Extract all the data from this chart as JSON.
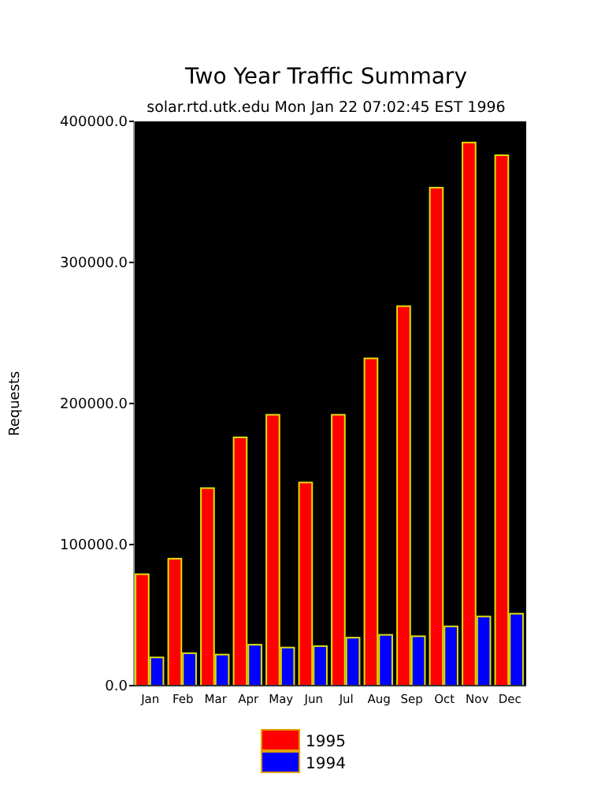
{
  "chart_data": {
    "type": "bar",
    "title": "Two Year Traffic Summary",
    "subtitle": "solar.rtd.utk.edu Mon Jan 22 07:02:45 EST 1996",
    "ylabel": "Requests",
    "categories": [
      "Jan",
      "Feb",
      "Mar",
      "Apr",
      "May",
      "Jun",
      "Jul",
      "Aug",
      "Sep",
      "Oct",
      "Nov",
      "Dec"
    ],
    "series": [
      {
        "name": "1995",
        "color": "#ff0000",
        "values": [
          79000,
          90000,
          140000,
          176000,
          192000,
          144000,
          192000,
          232000,
          269000,
          353000,
          385000,
          376000
        ]
      },
      {
        "name": "1994",
        "color": "#0000ff",
        "values": [
          20000,
          23000,
          22000,
          29000,
          27000,
          28000,
          34000,
          36000,
          35000,
          42000,
          49000,
          51000
        ]
      }
    ],
    "ylim": [
      0,
      400000
    ],
    "yticks": [
      {
        "value": 0,
        "label": "0.0"
      },
      {
        "value": 100000,
        "label": "100000.0"
      },
      {
        "value": 200000,
        "label": "200000.0"
      },
      {
        "value": 300000,
        "label": "300000.0"
      },
      {
        "value": 400000,
        "label": "400000.0"
      }
    ],
    "grid": false,
    "legend": "bottom"
  }
}
